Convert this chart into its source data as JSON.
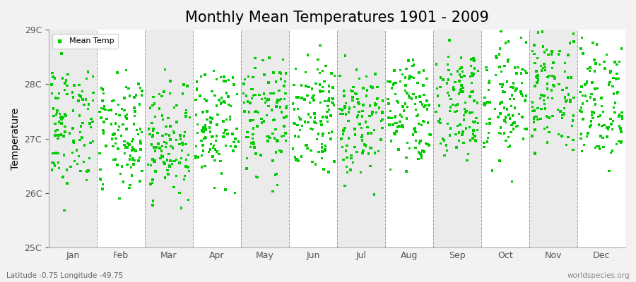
{
  "title": "Monthly Mean Temperatures 1901 - 2009",
  "ylabel": "Temperature",
  "ylim": [
    25.0,
    29.0
  ],
  "ytick_labels": [
    "25C",
    "26C",
    "27C",
    "28C",
    "29C"
  ],
  "ytick_values": [
    25.0,
    26.0,
    27.0,
    28.0,
    29.0
  ],
  "months": [
    "Jan",
    "Feb",
    "Mar",
    "Apr",
    "May",
    "Jun",
    "Jul",
    "Aug",
    "Sep",
    "Oct",
    "Nov",
    "Dec"
  ],
  "marker_color": "#00cc00",
  "marker": "s",
  "marker_size": 2.5,
  "bg_color": "#f2f2f2",
  "plot_bg_even": "#ebebeb",
  "plot_bg_odd": "#ffffff",
  "title_fontsize": 15,
  "axis_fontsize": 10,
  "tick_fontsize": 9,
  "legend_label": "Mean Temp",
  "footnote_left": "Latitude -0.75 Longitude -49.75",
  "footnote_right": "worldspecies.org",
  "seed": 42,
  "n_years": 109,
  "base_temps": [
    26.6,
    26.4,
    26.3,
    26.6,
    26.8,
    26.8,
    26.7,
    26.8,
    27.0,
    27.1,
    27.2,
    27.0
  ],
  "temp_std": 0.38,
  "trend_per_year": 0.012
}
